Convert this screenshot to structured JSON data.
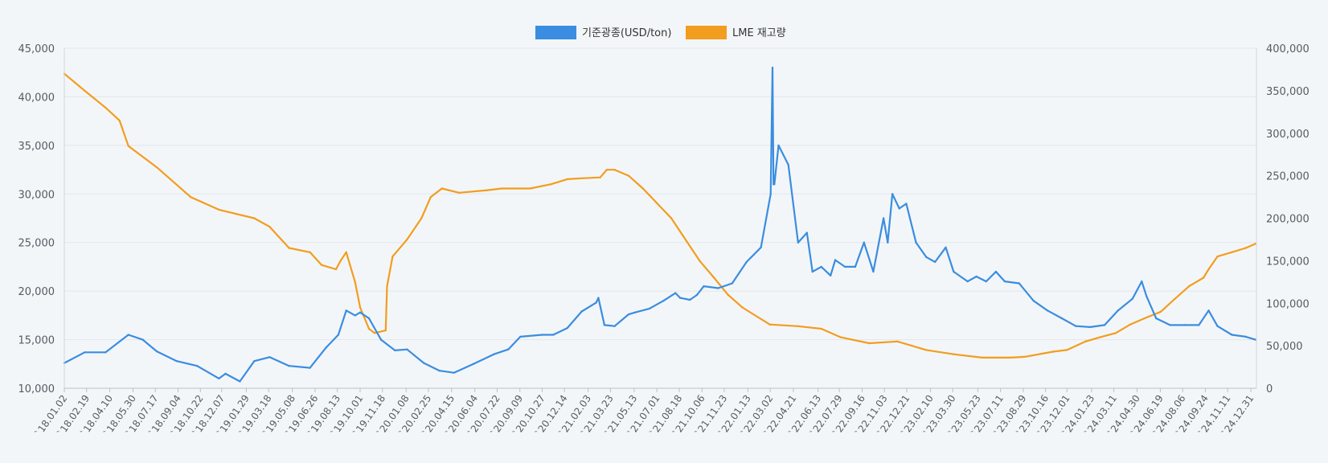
{
  "chart_data": {
    "type": "line",
    "title": "",
    "legend": {
      "placement": "top-center"
    },
    "grid": true,
    "colors": {
      "nickel": "#3a8de0",
      "stock": "#f29d1e"
    },
    "series": [
      {
        "name": "기준광종(USD/ton)",
        "axis": "left",
        "x": [
          "2018-01-02",
          "2018-02-15",
          "2018-04-01",
          "2018-05-20",
          "2018-06-20",
          "2018-07-20",
          "2018-09-01",
          "2018-10-15",
          "2018-12-01",
          "2018-12-15",
          "2019-01-15",
          "2019-02-15",
          "2019-03-20",
          "2019-05-01",
          "2019-06-15",
          "2019-07-20",
          "2019-08-15",
          "2019-09-01",
          "2019-09-20",
          "2019-10-01",
          "2019-10-20",
          "2019-11-15",
          "2019-12-15",
          "2020-01-10",
          "2020-02-15",
          "2020-03-20",
          "2020-04-20",
          "2020-06-01",
          "2020-07-15",
          "2020-08-15",
          "2020-09-10",
          "2020-10-27",
          "2020-11-20",
          "2020-12-20",
          "2021-01-20",
          "2021-02-20",
          "2021-02-25",
          "2021-03-10",
          "2021-04-01",
          "2021-05-01",
          "2021-05-15",
          "2021-06-15",
          "2021-07-15",
          "2021-08-10",
          "2021-08-20",
          "2021-09-10",
          "2021-09-25",
          "2021-10-10",
          "2021-11-10",
          "2021-12-10",
          "2022-01-10",
          "2022-02-10",
          "2022-03-03",
          "2022-03-07",
          "2022-03-09",
          "2022-03-11",
          "2022-03-20",
          "2022-04-10",
          "2022-05-01",
          "2022-05-20",
          "2022-06-01",
          "2022-06-20",
          "2022-07-10",
          "2022-07-20",
          "2022-08-10",
          "2022-09-01",
          "2022-09-20",
          "2022-10-10",
          "2022-11-01",
          "2022-11-10",
          "2022-11-20",
          "2022-12-05",
          "2022-12-20",
          "2023-01-10",
          "2023-02-01",
          "2023-02-20",
          "2023-03-15",
          "2023-04-01",
          "2023-05-01",
          "2023-05-20",
          "2023-06-10",
          "2023-07-01",
          "2023-07-20",
          "2023-08-20",
          "2023-09-20",
          "2023-10-20",
          "2023-11-20",
          "2023-12-20",
          "2024-01-20",
          "2024-02-20",
          "2024-03-20",
          "2024-04-20",
          "2024-05-10",
          "2024-05-20",
          "2024-06-10",
          "2024-07-10",
          "2024-08-10",
          "2024-09-10",
          "2024-10-01",
          "2024-10-20",
          "2024-11-20",
          "2024-12-20",
          "2025-01-10"
        ],
        "values": [
          12600,
          13700,
          13700,
          15500,
          15000,
          13800,
          12800,
          12300,
          11000,
          11500,
          10700,
          12800,
          13200,
          12300,
          12100,
          14200,
          15500,
          18000,
          17500,
          17800,
          17200,
          15000,
          13900,
          14000,
          12600,
          11800,
          11600,
          12500,
          13500,
          14000,
          15300,
          15500,
          15500,
          16200,
          17900,
          18800,
          19300,
          16500,
          16400,
          17600,
          17800,
          18200,
          19000,
          19800,
          19300,
          19100,
          19600,
          20500,
          20300,
          20800,
          23000,
          24500,
          30000,
          43000,
          31000,
          31000,
          35000,
          33000,
          25000,
          26000,
          22000,
          22500,
          21600,
          23200,
          22500,
          22500,
          25000,
          22000,
          27500,
          25000,
          30000,
          28500,
          29000,
          25000,
          23500,
          23000,
          24500,
          22000,
          21000,
          21500,
          21000,
          22000,
          21000,
          20800,
          19000,
          18000,
          17200,
          16400,
          16300,
          16500,
          18000,
          19200,
          21000,
          19500,
          17200,
          16500,
          16500,
          16500,
          18000,
          16400,
          15500,
          15300,
          15000
        ]
      },
      {
        "name": "LME 재고량",
        "axis": "right",
        "x": [
          "2018-01-02",
          "2018-02-15",
          "2018-04-01",
          "2018-05-01",
          "2018-05-20",
          "2018-07-20",
          "2018-10-01",
          "2018-12-01",
          "2019-02-15",
          "2019-03-20",
          "2019-05-01",
          "2019-06-15",
          "2019-07-10",
          "2019-08-10",
          "2019-08-20",
          "2019-09-01",
          "2019-09-20",
          "2019-10-01",
          "2019-10-20",
          "2019-11-01",
          "2019-11-25",
          "2019-11-28",
          "2019-12-10",
          "2020-01-10",
          "2020-02-10",
          "2020-03-01",
          "2020-03-25",
          "2020-05-01",
          "2020-07-01",
          "2020-08-01",
          "2020-10-01",
          "2020-11-15",
          "2020-12-20",
          "2021-01-20",
          "2021-03-01",
          "2021-03-15",
          "2021-04-01",
          "2021-05-01",
          "2021-06-01",
          "2021-08-01",
          "2021-10-01",
          "2021-11-01",
          "2021-12-01",
          "2022-01-01",
          "2022-03-01",
          "2022-05-01",
          "2022-06-20",
          "2022-08-01",
          "2022-10-01",
          "2022-12-01",
          "2023-02-01",
          "2023-04-01",
          "2023-06-01",
          "2023-08-01",
          "2023-09-01",
          "2023-11-01",
          "2023-12-01",
          "2024-01-10",
          "2024-02-10",
          "2024-03-15",
          "2024-04-15",
          "2024-05-15",
          "2024-06-20",
          "2024-07-20",
          "2024-08-20",
          "2024-09-20",
          "2024-10-01",
          "2024-10-20",
          "2024-11-20",
          "2024-12-20",
          "2025-01-10"
        ],
        "values": [
          370000,
          350000,
          330000,
          315000,
          285000,
          260000,
          225000,
          210000,
          200000,
          190000,
          165000,
          160000,
          145000,
          140000,
          150000,
          160000,
          125000,
          95000,
          70000,
          65000,
          68000,
          120000,
          155000,
          175000,
          200000,
          225000,
          235000,
          230000,
          233000,
          235000,
          235000,
          240000,
          246000,
          247000,
          248000,
          257000,
          257000,
          250000,
          235000,
          200000,
          150000,
          130000,
          110000,
          95000,
          75000,
          73000,
          70000,
          60000,
          53000,
          55000,
          45000,
          40000,
          36000,
          36000,
          37000,
          43000,
          45000,
          55000,
          60000,
          65000,
          75000,
          82000,
          90000,
          105000,
          120000,
          130000,
          140000,
          155000,
          160000,
          165000,
          170000
        ]
      }
    ],
    "axes": {
      "left": {
        "ylim": [
          10000,
          45000
        ],
        "ticks": [
          "45,000",
          "40,000",
          "35,000",
          "30,000",
          "25,000",
          "20,000",
          "15,000",
          "10,000"
        ]
      },
      "right": {
        "ylim": [
          0,
          400000
        ],
        "ticks": [
          "400,000",
          "350,000",
          "300,000",
          "250,000",
          "200,000",
          "150,000",
          "100,000",
          "50,000",
          "0"
        ]
      },
      "x": {
        "range": [
          "2018-01-02",
          "2025-01-12"
        ],
        "ticks": [
          {
            "date": "2018-01-02",
            "label": "`18.01.02"
          },
          {
            "date": "2018-02-19",
            "label": "`18.02.19"
          },
          {
            "date": "2018-04-10",
            "label": "`18.04.10"
          },
          {
            "date": "2018-05-30",
            "label": "`18.05.30"
          },
          {
            "date": "2018-07-17",
            "label": "`18.07.17"
          },
          {
            "date": "2018-09-04",
            "label": "`18.09.04"
          },
          {
            "date": "2018-10-22",
            "label": "`18.10.22"
          },
          {
            "date": "2018-12-07",
            "label": "`18.12.07"
          },
          {
            "date": "2019-01-29",
            "label": "`19.01.29"
          },
          {
            "date": "2019-03-18",
            "label": "`19.03.18"
          },
          {
            "date": "2019-05-08",
            "label": "`19.05.08"
          },
          {
            "date": "2019-06-26",
            "label": "`19.06.26"
          },
          {
            "date": "2019-08-13",
            "label": "`19.08.13"
          },
          {
            "date": "2019-10-01",
            "label": "`19.10.01"
          },
          {
            "date": "2019-11-18",
            "label": "`19.11.18"
          },
          {
            "date": "2020-01-08",
            "label": "`20.01.08"
          },
          {
            "date": "2020-02-25",
            "label": "`20.02.25"
          },
          {
            "date": "2020-04-15",
            "label": "`20.04.15"
          },
          {
            "date": "2020-06-04",
            "label": "`20.06.04"
          },
          {
            "date": "2020-07-22",
            "label": "`20.07.22"
          },
          {
            "date": "2020-09-09",
            "label": "`20.09.09"
          },
          {
            "date": "2020-10-27",
            "label": "`20.10.27"
          },
          {
            "date": "2020-12-14",
            "label": "`20.12.14"
          },
          {
            "date": "2021-02-03",
            "label": "`21.02.03"
          },
          {
            "date": "2021-03-23",
            "label": "`21.03.23"
          },
          {
            "date": "2021-05-13",
            "label": "`21.05.13"
          },
          {
            "date": "2021-07-01",
            "label": "`21.07.01"
          },
          {
            "date": "2021-08-18",
            "label": "`21.08.18"
          },
          {
            "date": "2021-10-06",
            "label": "`21.10.06"
          },
          {
            "date": "2021-11-23",
            "label": "`21.11.23"
          },
          {
            "date": "2022-01-13",
            "label": "`22.01.13"
          },
          {
            "date": "2022-03-02",
            "label": "`22.03.02"
          },
          {
            "date": "2022-04-21",
            "label": "`22.04.21"
          },
          {
            "date": "2022-06-13",
            "label": "`22.06.13"
          },
          {
            "date": "2022-07-29",
            "label": "`22.07.29"
          },
          {
            "date": "2022-09-16",
            "label": "`22.09.16"
          },
          {
            "date": "2022-11-03",
            "label": "`22.11.03"
          },
          {
            "date": "2022-12-21",
            "label": "`22.12.21"
          },
          {
            "date": "2023-02-10",
            "label": "`23.02.10"
          },
          {
            "date": "2023-03-30",
            "label": "`23.03.30"
          },
          {
            "date": "2023-05-23",
            "label": "`23.05.23"
          },
          {
            "date": "2023-07-11",
            "label": "`23.07.11"
          },
          {
            "date": "2023-08-29",
            "label": "`23.08.29"
          },
          {
            "date": "2023-10-16",
            "label": "`23.10.16"
          },
          {
            "date": "2023-12-01",
            "label": "`23.12.01"
          },
          {
            "date": "2024-01-23",
            "label": "`24.01.23"
          },
          {
            "date": "2024-03-11",
            "label": "`24.03.11"
          },
          {
            "date": "2024-04-30",
            "label": "`24.04.30"
          },
          {
            "date": "2024-06-19",
            "label": "`24.06.19"
          },
          {
            "date": "2024-08-06",
            "label": "`24.08.06"
          },
          {
            "date": "2024-09-24",
            "label": "`24.09.24"
          },
          {
            "date": "2024-11-11",
            "label": "`24.11.11"
          },
          {
            "date": "2024-12-31",
            "label": "`24.12.31"
          }
        ]
      }
    }
  }
}
